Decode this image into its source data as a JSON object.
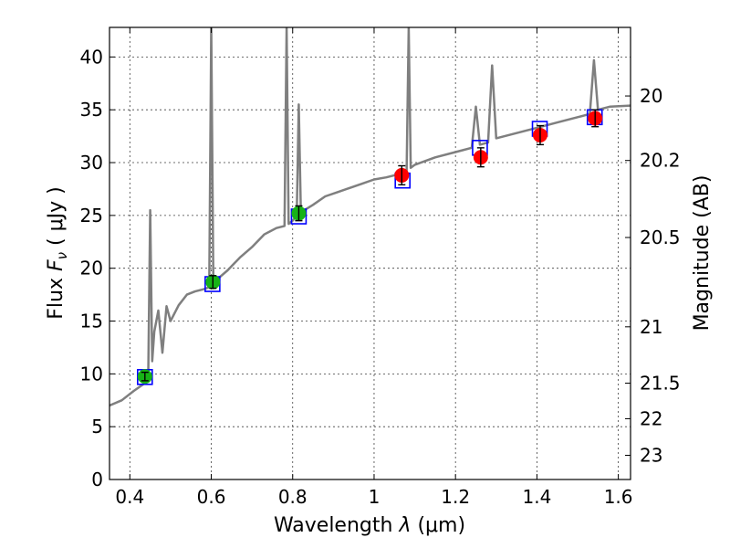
{
  "chart_data": {
    "type": "scatter",
    "title": "",
    "xlabel": "Wavelength  λ (μm)",
    "ylabel": "Flux  F_ν  ( μJy )",
    "ylabel_parts": {
      "prefix": "Flux  ",
      "symbol": "F",
      "subscript": "ν",
      "suffix": "  ( μJy )"
    },
    "xlabel_parts": {
      "prefix": "Wavelength  ",
      "symbol": "λ",
      "suffix": " (μm)"
    },
    "y2label": "Magnitude (AB)",
    "xlim": [
      0.35,
      1.63
    ],
    "ylim": [
      0,
      42.8
    ],
    "grid": true,
    "x_ticks": [
      {
        "value": 0.4,
        "label": "0.4"
      },
      {
        "value": 0.6,
        "label": "0.6"
      },
      {
        "value": 0.8,
        "label": "0.8"
      },
      {
        "value": 1.0,
        "label": "1"
      },
      {
        "value": 1.2,
        "label": "1.2"
      },
      {
        "value": 1.4,
        "label": "1.4"
      },
      {
        "value": 1.6,
        "label": "1.6"
      }
    ],
    "y_ticks": [
      {
        "value": 0,
        "label": "0"
      },
      {
        "value": 5,
        "label": "5"
      },
      {
        "value": 10,
        "label": "10"
      },
      {
        "value": 15,
        "label": "15"
      },
      {
        "value": 20,
        "label": "20"
      },
      {
        "value": 25,
        "label": "25"
      },
      {
        "value": 30,
        "label": "30"
      },
      {
        "value": 35,
        "label": "35"
      },
      {
        "value": 40,
        "label": "40"
      }
    ],
    "y2_ticks": [
      {
        "value": 20,
        "label": "20"
      },
      {
        "value": 20.2,
        "label": "20.2"
      },
      {
        "value": 20.5,
        "label": "20.5"
      },
      {
        "value": 21,
        "label": "21"
      },
      {
        "value": 21.5,
        "label": "21.5"
      },
      {
        "value": 22,
        "label": "22"
      },
      {
        "value": 23,
        "label": "23"
      }
    ],
    "model_spectrum": {
      "color": "#7f7f7f",
      "x": [
        0.35,
        0.38,
        0.41,
        0.44,
        0.445,
        0.45,
        0.455,
        0.46,
        0.47,
        0.48,
        0.49,
        0.5,
        0.52,
        0.54,
        0.56,
        0.58,
        0.595,
        0.6,
        0.605,
        0.61,
        0.64,
        0.67,
        0.7,
        0.73,
        0.76,
        0.78,
        0.785,
        0.79,
        0.8,
        0.81,
        0.815,
        0.82,
        0.85,
        0.88,
        0.91,
        0.94,
        0.97,
        1.0,
        1.03,
        1.06,
        1.08,
        1.085,
        1.09,
        1.1,
        1.15,
        1.2,
        1.24,
        1.25,
        1.26,
        1.28,
        1.29,
        1.3,
        1.35,
        1.4,
        1.45,
        1.5,
        1.53,
        1.54,
        1.55,
        1.58,
        1.63
      ],
      "y": [
        7.0,
        7.5,
        8.4,
        9.2,
        9.3,
        25.5,
        11.2,
        14.0,
        16.0,
        12.0,
        16.4,
        15.0,
        16.5,
        17.5,
        17.8,
        18.0,
        18.2,
        42.8,
        18.5,
        18.8,
        19.8,
        21.0,
        22.0,
        23.2,
        23.8,
        24.0,
        42.8,
        24.2,
        24.5,
        25.0,
        35.5,
        25.3,
        26.0,
        26.8,
        27.2,
        27.6,
        28.0,
        28.4,
        28.6,
        28.9,
        29.1,
        42.8,
        29.5,
        29.8,
        30.5,
        31.0,
        31.4,
        35.3,
        31.7,
        31.9,
        39.2,
        32.3,
        32.8,
        33.3,
        33.8,
        34.3,
        34.6,
        39.7,
        35.0,
        35.3,
        35.4
      ]
    },
    "series": [
      {
        "marker": "square",
        "color": "#0000ff",
        "points": [
          {
            "x": 0.437,
            "y": 9.7
          },
          {
            "x": 0.603,
            "y": 18.5
          },
          {
            "x": 0.815,
            "y": 24.9
          },
          {
            "x": 1.07,
            "y": 28.3
          },
          {
            "x": 1.26,
            "y": 31.4
          },
          {
            "x": 1.407,
            "y": 33.2
          },
          {
            "x": 1.542,
            "y": 34.3
          }
        ]
      },
      {
        "marker": "circle",
        "color": "#17b217",
        "points": [
          {
            "x": 0.437,
            "y": 9.75,
            "err": 0.4
          },
          {
            "x": 0.604,
            "y": 18.7,
            "err": 0.6
          },
          {
            "x": 0.815,
            "y": 25.2,
            "err": 0.7
          }
        ]
      },
      {
        "marker": "circle",
        "color": "#ff0000",
        "points": [
          {
            "x": 1.068,
            "y": 28.8,
            "err": 0.9
          },
          {
            "x": 1.262,
            "y": 30.5,
            "err": 0.9
          },
          {
            "x": 1.408,
            "y": 32.6,
            "err": 0.9
          },
          {
            "x": 1.543,
            "y": 34.2,
            "err": 0.8
          }
        ]
      }
    ]
  }
}
